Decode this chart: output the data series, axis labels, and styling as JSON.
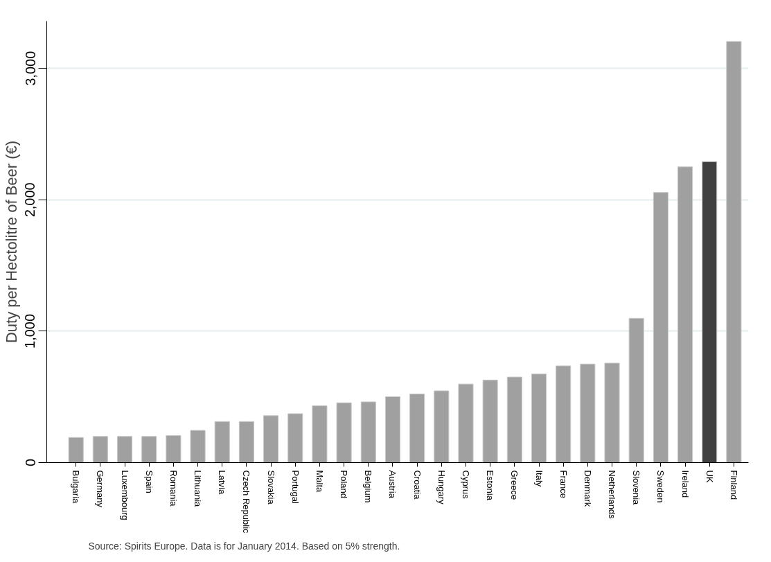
{
  "chart_data": {
    "type": "bar",
    "ylabel": "Duty per Hectolitre of Beer (€)",
    "categories": [
      "Bulgaria",
      "Germany",
      "Luxembourg",
      "Spain",
      "Romania",
      "Lithuania",
      "Latvia",
      "Czech Republic",
      "Slovakia",
      "Portugal",
      "Malta",
      "Poland",
      "Belgium",
      "Austria",
      "Croatia",
      "Hungary",
      "Cyprus",
      "Estonia",
      "Greece",
      "Italy",
      "France",
      "Denmark",
      "Netherlands",
      "Slovenia",
      "Sweden",
      "Ireland",
      "UK",
      "Finland"
    ],
    "values": [
      191,
      199,
      199,
      199,
      206,
      245,
      312,
      312,
      357,
      372,
      432,
      455,
      462,
      501,
      522,
      546,
      598,
      628,
      651,
      674,
      736,
      750,
      757,
      1098,
      2056,
      2251,
      2291,
      3205
    ],
    "colors": [
      "#a0a0a0",
      "#a0a0a0",
      "#a0a0a0",
      "#a0a0a0",
      "#a0a0a0",
      "#a0a0a0",
      "#a0a0a0",
      "#a0a0a0",
      "#a0a0a0",
      "#a0a0a0",
      "#a0a0a0",
      "#a0a0a0",
      "#a0a0a0",
      "#a0a0a0",
      "#a0a0a0",
      "#a0a0a0",
      "#a0a0a0",
      "#a0a0a0",
      "#a0a0a0",
      "#a0a0a0",
      "#a0a0a0",
      "#a0a0a0",
      "#a0a0a0",
      "#a0a0a0",
      "#a0a0a0",
      "#a0a0a0",
      "#404040",
      "#a0a0a0"
    ],
    "ylim": [
      0,
      3360
    ],
    "yticks": [
      {
        "value": 0,
        "label": "0"
      },
      {
        "value": 1000,
        "label": "1,000"
      },
      {
        "value": 2000,
        "label": "2,000"
      },
      {
        "value": 3000,
        "label": "3,000"
      }
    ],
    "grid": "y",
    "annotations": [
      "Source: Spirits Europe. Data is for January 2014. Based on 5% strength."
    ]
  }
}
